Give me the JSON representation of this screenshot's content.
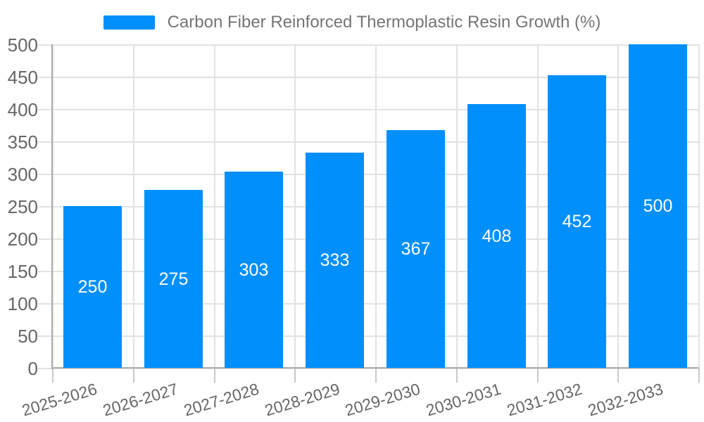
{
  "legend": {
    "label": "Carbon Fiber Reinforced Thermoplastic Resin Growth (%)"
  },
  "chart_data": {
    "type": "bar",
    "title": "Carbon Fiber Reinforced Thermoplastic Resin Growth (%)",
    "series": [
      {
        "name": "Carbon Fiber Reinforced Thermoplastic Resin Growth (%)",
        "values": [
          250,
          275,
          303,
          333,
          367,
          408,
          452,
          500
        ]
      }
    ],
    "categories": [
      "2025-2026",
      "2026-2027",
      "2027-2028",
      "2028-2029",
      "2029-2030",
      "2030-2031",
      "2031-2032",
      "2032-2033"
    ],
    "data_labels_shown": true,
    "xlabel": "",
    "ylabel": "",
    "ylim": [
      0,
      500
    ],
    "y_tick_step": 50,
    "y_ticks": [
      0,
      50,
      100,
      150,
      200,
      250,
      300,
      350,
      400,
      450,
      500
    ],
    "grid": true,
    "legend_position": "top"
  },
  "colors": {
    "bar": "#008FFB",
    "data_label_text": "#ffffff",
    "axis_text": "#666666",
    "title_text": "#757575",
    "gridline": "#e2e2e2",
    "axis_line": "#ababab",
    "x_tick": "#c8c8c8"
  }
}
